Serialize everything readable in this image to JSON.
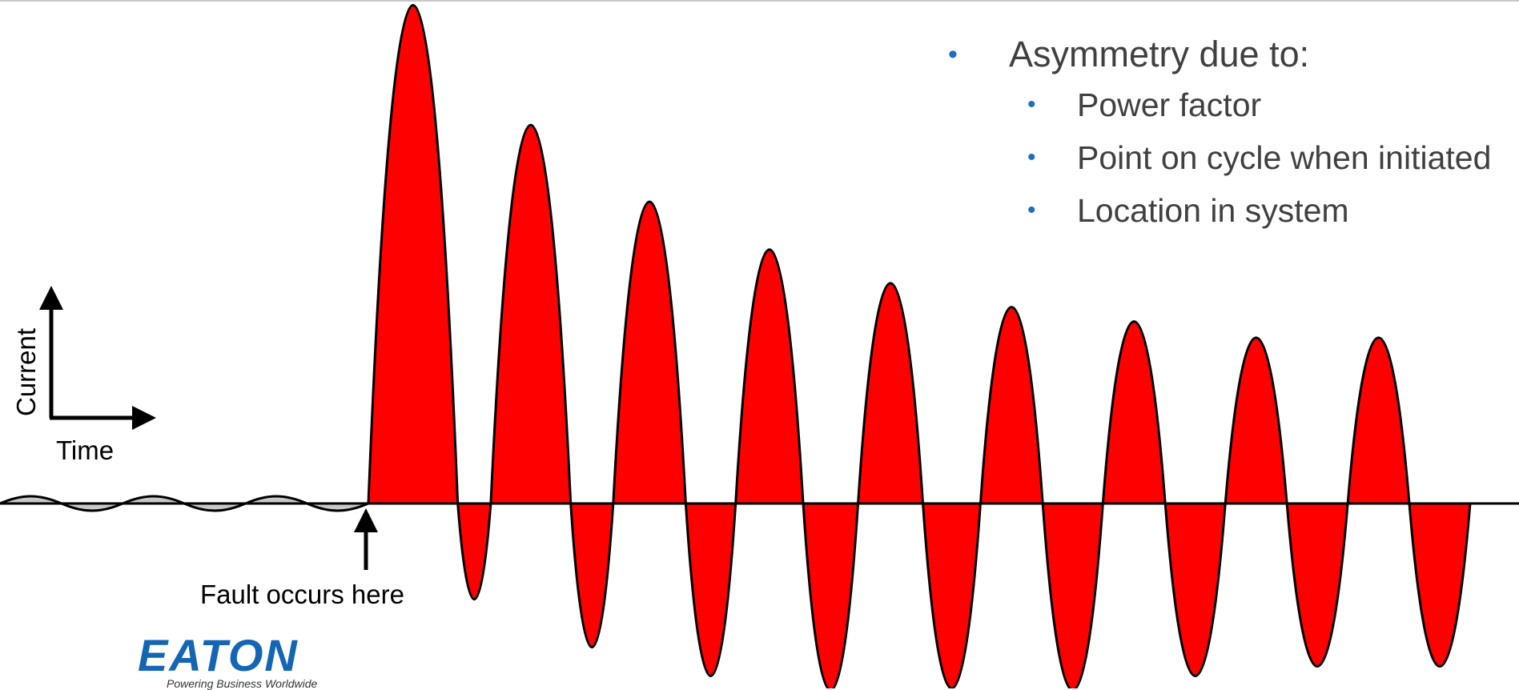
{
  "bullets": {
    "main": "Asymmetry due to:",
    "sub": [
      "Power factor",
      "Point on cycle when initiated",
      "Location in system"
    ]
  },
  "axis": {
    "y_label": "Current",
    "x_label": "Time"
  },
  "annotation": {
    "fault": "Fault occurs here"
  },
  "logo": {
    "word": "EATON",
    "tagline": "Powering Business Worldwide"
  },
  "colors": {
    "fault_fill": "#ff0000",
    "prefault_fill": "#c8c8c8",
    "bullet": "#1f6fc0",
    "outline": "#000000"
  },
  "chart_data": {
    "type": "area",
    "description_units": "relative current (pre-fault amplitude = 1)",
    "prefault": {
      "cycles": 3,
      "amplitude": 1
    },
    "fault_cycles": [
      {
        "cycle": 1,
        "positive_peak": 52,
        "negative_peak": -10
      },
      {
        "cycle": 2,
        "positive_peak": 39.5,
        "negative_peak": -15
      },
      {
        "cycle": 3,
        "positive_peak": 31.5,
        "negative_peak": -18
      },
      {
        "cycle": 4,
        "positive_peak": 26.5,
        "negative_peak": -19.5
      },
      {
        "cycle": 5,
        "positive_peak": 23,
        "negative_peak": -19.3
      },
      {
        "cycle": 6,
        "positive_peak": 20.5,
        "negative_peak": -19.5
      },
      {
        "cycle": 7,
        "positive_peak": 19,
        "negative_peak": -18
      },
      {
        "cycle": 8,
        "positive_peak": 17.3,
        "negative_peak": -17
      },
      {
        "cycle": 9,
        "positive_peak": 17.3,
        "negative_peak": -17
      }
    ]
  }
}
